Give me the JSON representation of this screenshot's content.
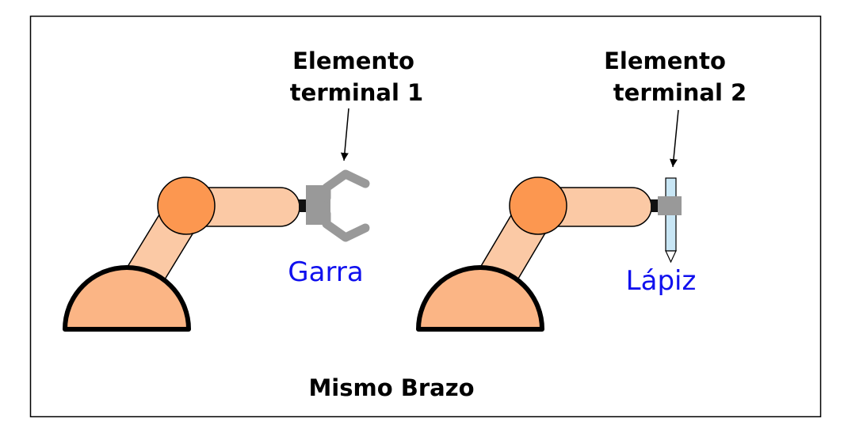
{
  "diagram": {
    "robot_1": {
      "label_line1": "Elemento",
      "label_line2": "terminal 1",
      "tool_label": "Garra",
      "tool_icon": "gripper-icon"
    },
    "robot_2": {
      "label_line1": "Elemento",
      "label_line2": "terminal 2",
      "tool_label": "Lápiz",
      "tool_icon": "pencil-icon"
    },
    "caption": "Mismo Brazo",
    "colors": {
      "base": "#fbb585",
      "upper_arm": "#fbc9a5",
      "joint": "#fc9750",
      "gripper": "#999999",
      "pencil": "#c8e6f5",
      "tool_label": "#1010ee",
      "outline": "#000000"
    }
  }
}
